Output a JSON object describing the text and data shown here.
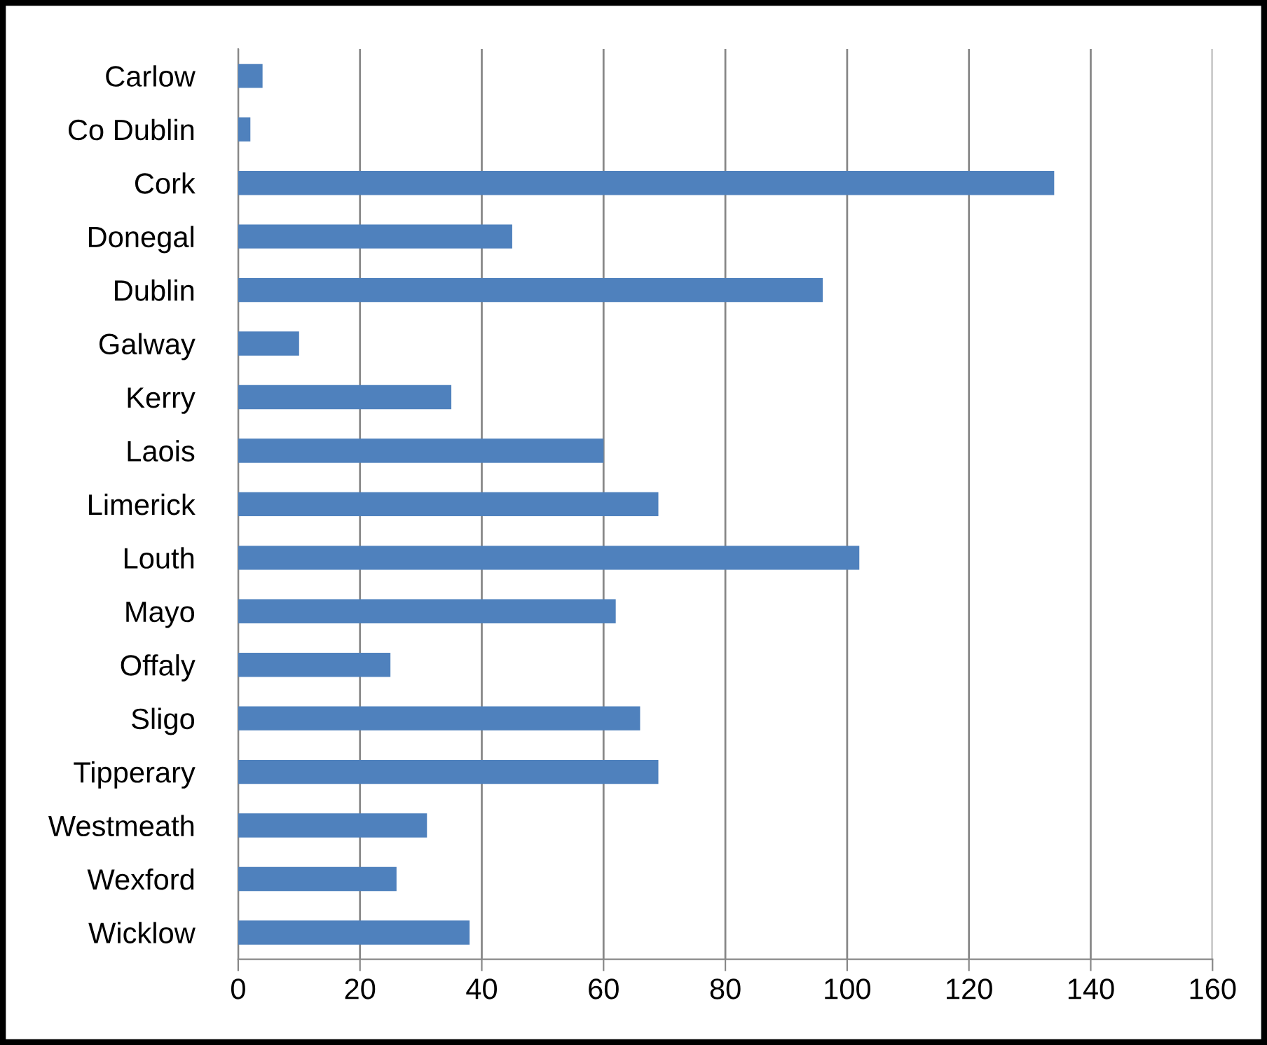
{
  "chart_data": {
    "type": "bar",
    "orientation": "horizontal",
    "categories": [
      "Carlow",
      "Co Dublin",
      "Cork",
      "Donegal",
      "Dublin",
      "Galway",
      "Kerry",
      "Laois",
      "Limerick",
      "Louth",
      "Mayo",
      "Offaly",
      "Sligo",
      "Tipperary",
      "Westmeath",
      "Wexford",
      "Wicklow"
    ],
    "values": [
      4,
      2,
      134,
      45,
      96,
      10,
      35,
      60,
      69,
      102,
      62,
      25,
      66,
      69,
      31,
      26,
      38
    ],
    "color": "#4f81bd",
    "xlim": [
      0,
      160
    ],
    "xticks": [
      0,
      20,
      40,
      60,
      80,
      100,
      120,
      140,
      160
    ],
    "grid": "x"
  }
}
